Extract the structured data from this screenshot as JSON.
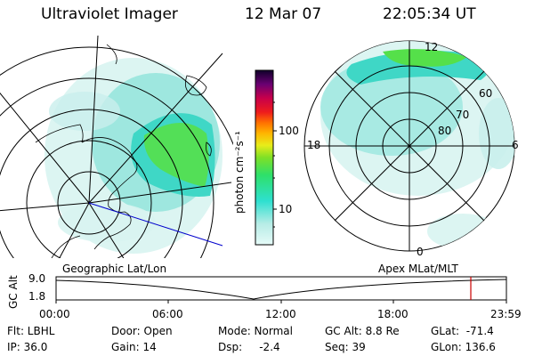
{
  "header": {
    "instrument": "Ultraviolet Imager",
    "date": "12 Mar 07",
    "time": "22:05:34 UT"
  },
  "colorbar": {
    "unit_label": "photon cm⁻²s⁻¹",
    "ticks": [
      "100",
      "10"
    ]
  },
  "polar_plot": {
    "mlt_labels": {
      "top": "12",
      "left": "18",
      "right": "6",
      "bottom": "0"
    },
    "lat_labels": [
      "60",
      "70",
      "80"
    ]
  },
  "map_labels": {
    "left": "Geographic Lat/Lon",
    "right": "Apex MLat/MLT"
  },
  "timeline": {
    "y_axis_label": "GC Alt",
    "y_ticks": [
      "9.0",
      "1.8"
    ],
    "x_ticks": [
      "00:00",
      "06:00",
      "12:00",
      "18:00",
      "23:59"
    ],
    "current_marker_color": "#cc0000"
  },
  "status": {
    "filter": "Flt: LBHL",
    "ip": "IP: 36.0",
    "door": "Door: Open",
    "gain": "Gain: 14",
    "mode": "Mode: Normal",
    "dsp": "Dsp:     -2.4",
    "gc_alt": "GC Alt: 8.8 Re",
    "seq": "Seq: 39",
    "glat": "GLat:  -71.4",
    "glon": "GLon: 136.6"
  },
  "colors": {
    "low": "#bfeeea",
    "mid": "#3fd7c6",
    "high": "#55e04a",
    "track": "#0000cc"
  }
}
